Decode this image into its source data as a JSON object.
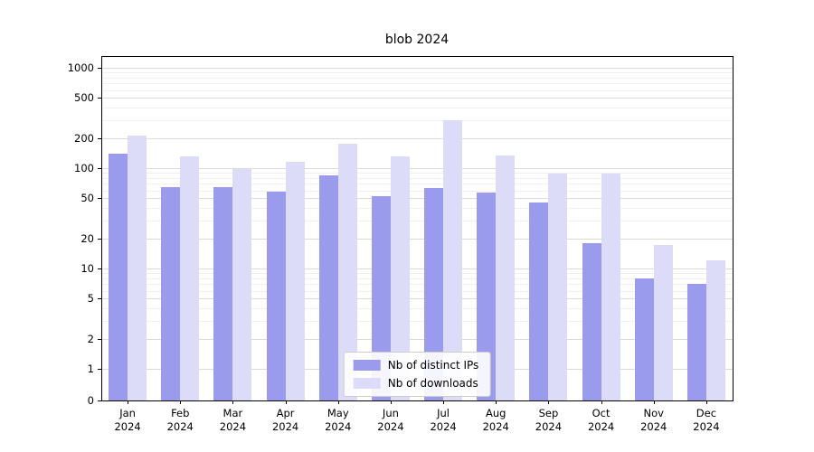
{
  "chart_data": {
    "type": "bar",
    "title": "blob 2024",
    "xlabel": "",
    "ylabel": "",
    "yscale": "symlog",
    "grid": true,
    "legend_position": "lower center",
    "ylim": [
      0,
      1300
    ],
    "yticks": [
      0,
      1,
      2,
      5,
      10,
      20,
      50,
      100,
      200,
      500,
      1000
    ],
    "categories": [
      "Jan\n2024",
      "Feb\n2024",
      "Mar\n2024",
      "Apr\n2024",
      "May\n2024",
      "Jun\n2024",
      "Jul\n2024",
      "Aug\n2024",
      "Sep\n2024",
      "Oct\n2024",
      "Nov\n2024",
      "Dec\n2024"
    ],
    "series": [
      {
        "name": "Nb of distinct IPs",
        "color": "#9b9bee",
        "values": [
          140,
          65,
          65,
          58,
          85,
          53,
          64,
          57,
          45,
          18,
          8,
          7
        ]
      },
      {
        "name": "Nb of downloads",
        "color": "#dcdcf8",
        "values": [
          210,
          130,
          97,
          115,
          175,
          130,
          300,
          135,
          88,
          88,
          17,
          12
        ]
      }
    ]
  }
}
